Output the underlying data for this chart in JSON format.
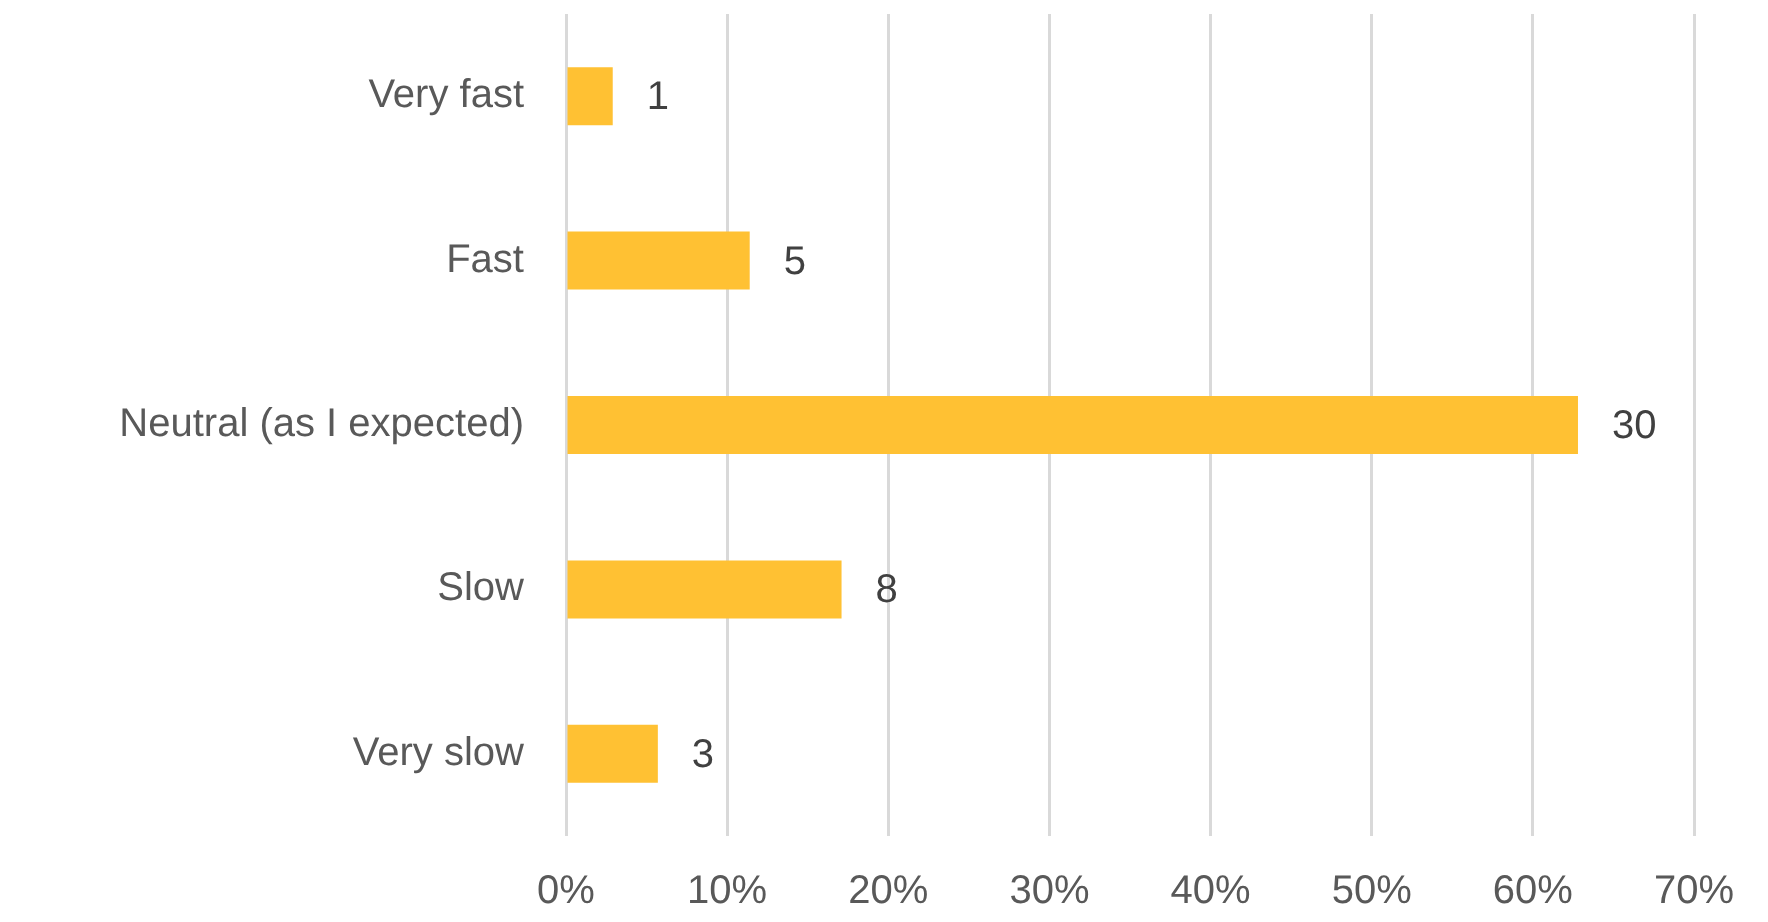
{
  "chart_data": {
    "type": "bar",
    "orientation": "horizontal",
    "categories": [
      "Very fast",
      "Fast",
      "Neutral (as I expected)",
      "Slow",
      "Very slow"
    ],
    "values": [
      2.9,
      11.4,
      62.8,
      17.1,
      5.7
    ],
    "color": "#ffc133",
    "xlim": [
      0,
      70
    ],
    "xticks": [
      {
        "value": 0,
        "label": "0%"
      },
      {
        "value": 10,
        "label": "10%"
      },
      {
        "value": 20,
        "label": "20%"
      },
      {
        "value": 30,
        "label": "30%"
      },
      {
        "value": 40,
        "label": "40%"
      },
      {
        "value": 50,
        "label": "50%"
      },
      {
        "value": 60,
        "label": "60%"
      },
      {
        "value": 70,
        "label": "70%"
      }
    ],
    "annotations": [
      {
        "text": "1",
        "x": 2.9,
        "y": "Very fast"
      },
      {
        "text": "5",
        "x": 11.4,
        "y": "Fast"
      },
      {
        "text": "30",
        "x": 62.8,
        "y": "Neutral (as I expected)"
      },
      {
        "text": "8",
        "x": 17.1,
        "y": "Slow"
      },
      {
        "text": "3",
        "x": 5.7,
        "y": "Very slow"
      }
    ],
    "grid": "x"
  }
}
